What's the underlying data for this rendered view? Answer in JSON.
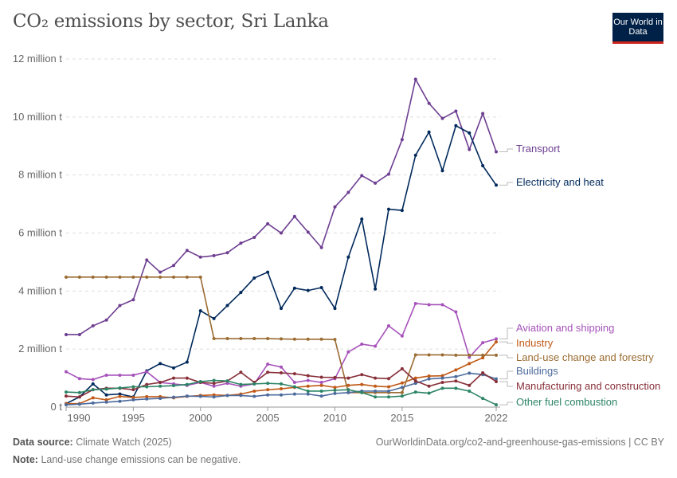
{
  "title": "CO₂ emissions by sector, Sri Lanka",
  "logo": "Our World in Data",
  "footer": {
    "source_label": "Data source:",
    "source": "Climate Watch (2025)",
    "url": "OurWorldinData.org/co2-and-greenhouse-gas-emissions | CC BY",
    "note_label": "Note:",
    "note": "Land-use change emissions can be negative."
  },
  "chart_data": {
    "type": "line",
    "title": "CO₂ emissions by sector, Sri Lanka",
    "ylim": [
      0,
      12000000
    ],
    "yticks": [
      {
        "v": 0,
        "label": "0 t"
      },
      {
        "v": 2000000,
        "label": "2 million t"
      },
      {
        "v": 4000000,
        "label": "4 million t"
      },
      {
        "v": 6000000,
        "label": "6 million t"
      },
      {
        "v": 8000000,
        "label": "8 million t"
      },
      {
        "v": 10000000,
        "label": "10 million t"
      },
      {
        "v": 12000000,
        "label": "12 million t"
      }
    ],
    "xticks": [
      1990,
      1995,
      2000,
      2005,
      2010,
      2015,
      2022
    ],
    "grid": true,
    "legend": "right-end labels",
    "x": [
      1990,
      1991,
      1992,
      1993,
      1994,
      1995,
      1996,
      1997,
      1998,
      1999,
      2000,
      2001,
      2002,
      2003,
      2004,
      2005,
      2006,
      2007,
      2008,
      2009,
      2010,
      2011,
      2012,
      2013,
      2014,
      2015,
      2016,
      2017,
      2018,
      2019,
      2020,
      2021,
      2022
    ],
    "unit": "million t",
    "series": [
      {
        "name": "Transport",
        "color": "#6d3e91",
        "values": [
          2.5,
          2.5,
          2.8,
          3.0,
          3.5,
          3.7,
          5.07,
          4.65,
          4.88,
          5.4,
          5.17,
          5.22,
          5.32,
          5.65,
          5.85,
          6.32,
          6.0,
          6.57,
          6.03,
          5.5,
          6.9,
          7.4,
          7.98,
          7.72,
          8.03,
          9.22,
          11.3,
          10.47,
          9.95,
          10.2,
          8.88,
          10.12,
          8.8
        ]
      },
      {
        "name": "Electricity and heat",
        "color": "#00295b",
        "values": [
          0.12,
          0.35,
          0.8,
          0.42,
          0.45,
          0.35,
          1.25,
          1.5,
          1.35,
          1.55,
          3.32,
          3.05,
          3.5,
          3.95,
          4.45,
          4.65,
          3.4,
          4.1,
          4.02,
          4.12,
          3.4,
          5.17,
          6.48,
          4.07,
          6.82,
          6.78,
          8.68,
          9.48,
          8.15,
          9.7,
          9.45,
          8.32,
          7.65
        ]
      },
      {
        "name": "Aviation and shipping",
        "color": "#a652ba",
        "values": [
          1.22,
          0.98,
          0.95,
          1.1,
          1.1,
          1.1,
          1.22,
          0.85,
          0.8,
          0.75,
          0.85,
          0.72,
          0.82,
          0.72,
          0.8,
          1.48,
          1.38,
          0.85,
          0.92,
          0.85,
          0.98,
          1.9,
          2.17,
          2.1,
          2.8,
          2.45,
          3.57,
          3.53,
          3.53,
          3.28,
          1.72,
          2.22,
          2.35
        ]
      },
      {
        "name": "Industry",
        "color": "#c05917",
        "values": [
          0.12,
          0.12,
          0.32,
          0.25,
          0.37,
          0.33,
          0.36,
          0.36,
          0.32,
          0.37,
          0.4,
          0.42,
          0.4,
          0.45,
          0.55,
          0.6,
          0.63,
          0.68,
          0.72,
          0.75,
          0.68,
          0.75,
          0.78,
          0.72,
          0.7,
          0.83,
          1.0,
          1.07,
          1.08,
          1.28,
          1.5,
          1.7,
          2.25
        ]
      },
      {
        "name": "Land-use change and forestry",
        "color": "#9a6c32",
        "values": [
          4.48,
          4.48,
          4.48,
          4.48,
          4.48,
          4.48,
          4.48,
          4.48,
          4.48,
          4.48,
          4.48,
          2.36,
          2.36,
          2.36,
          2.36,
          2.36,
          2.35,
          2.34,
          2.34,
          2.34,
          2.33,
          0.5,
          0.5,
          0.5,
          0.5,
          0.5,
          1.8,
          1.8,
          1.8,
          1.79,
          1.79,
          1.79,
          1.79
        ]
      },
      {
        "name": "Buildings",
        "color": "#4c6a9c",
        "values": [
          0.08,
          0.1,
          0.14,
          0.17,
          0.2,
          0.25,
          0.28,
          0.3,
          0.34,
          0.38,
          0.37,
          0.35,
          0.4,
          0.4,
          0.37,
          0.42,
          0.42,
          0.45,
          0.45,
          0.38,
          0.47,
          0.5,
          0.55,
          0.55,
          0.55,
          0.68,
          0.82,
          0.97,
          1.0,
          1.05,
          1.17,
          1.12,
          0.97
        ]
      },
      {
        "name": "Manufacturing and construction",
        "color": "#883039",
        "values": [
          0.38,
          0.35,
          0.6,
          0.65,
          0.65,
          0.6,
          0.78,
          0.85,
          1.0,
          1.0,
          0.85,
          0.82,
          0.9,
          1.2,
          0.85,
          1.2,
          1.18,
          1.15,
          1.08,
          1.03,
          1.02,
          1.0,
          1.12,
          1.0,
          0.98,
          1.32,
          0.9,
          0.72,
          0.85,
          0.9,
          0.75,
          1.18,
          0.88
        ]
      },
      {
        "name": "Other fuel combustion",
        "color": "#2c8465",
        "values": [
          0.52,
          0.5,
          0.6,
          0.62,
          0.66,
          0.7,
          0.7,
          0.72,
          0.74,
          0.78,
          0.88,
          0.92,
          0.9,
          0.78,
          0.8,
          0.82,
          0.8,
          0.7,
          0.55,
          0.55,
          0.58,
          0.6,
          0.5,
          0.35,
          0.35,
          0.38,
          0.52,
          0.48,
          0.65,
          0.65,
          0.55,
          0.3,
          0.08
        ]
      }
    ]
  }
}
